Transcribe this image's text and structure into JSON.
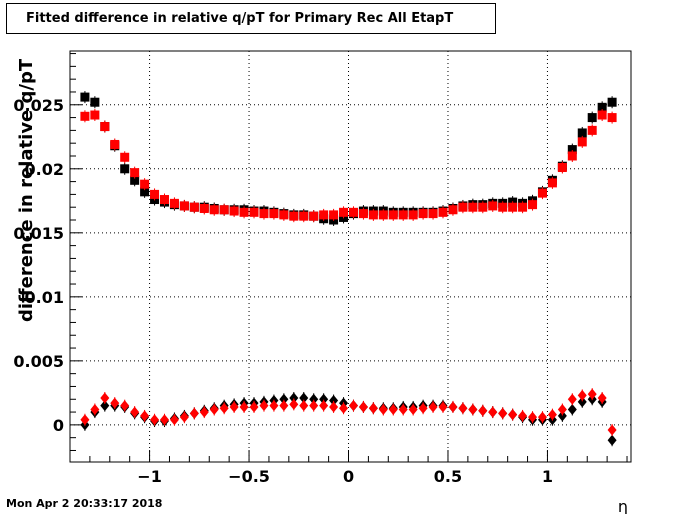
{
  "chart_data": {
    "type": "scatter",
    "title": "Fitted difference in relative q/pT for Primary Rec All EtapT",
    "xlabel": "η",
    "ylabel": "difference in relative q/pT",
    "xlim": [
      -1.4,
      1.42
    ],
    "ylim": [
      -0.0029,
      0.0292
    ],
    "grid": true,
    "x_ticks": [
      -1,
      -0.5,
      0,
      0.5,
      1
    ],
    "x_tick_labels": [
      "−1",
      "−0.5",
      "0",
      "0.5",
      "1"
    ],
    "y_ticks": [
      0,
      0.005,
      0.01,
      0.015,
      0.02,
      0.025
    ],
    "y_tick_labels": [
      "0",
      "0.005",
      "0.01",
      "0.015",
      "0.02",
      "0.025"
    ],
    "x": [
      -1.325,
      -1.275,
      -1.225,
      -1.175,
      -1.125,
      -1.075,
      -1.025,
      -0.975,
      -0.925,
      -0.875,
      -0.825,
      -0.775,
      -0.725,
      -0.675,
      -0.625,
      -0.575,
      -0.525,
      -0.475,
      -0.425,
      -0.375,
      -0.325,
      -0.275,
      -0.225,
      -0.175,
      -0.125,
      -0.075,
      -0.025,
      0.025,
      0.075,
      0.125,
      0.175,
      0.225,
      0.275,
      0.325,
      0.375,
      0.425,
      0.475,
      0.525,
      0.575,
      0.625,
      0.675,
      0.725,
      0.775,
      0.825,
      0.875,
      0.925,
      0.975,
      1.025,
      1.075,
      1.125,
      1.175,
      1.225,
      1.275,
      1.325
    ],
    "series": [
      {
        "marker": "square",
        "color": "#000000",
        "values": [
          0.0256,
          0.0252,
          0.0233,
          0.0218,
          0.02,
          0.0191,
          0.0182,
          0.0176,
          0.0174,
          0.0172,
          0.0171,
          0.017,
          0.017,
          0.0169,
          0.0168,
          0.0168,
          0.0168,
          0.0167,
          0.0167,
          0.0166,
          0.0165,
          0.0164,
          0.0164,
          0.0163,
          0.0161,
          0.016,
          0.0162,
          0.0165,
          0.0167,
          0.0167,
          0.0167,
          0.0166,
          0.0166,
          0.0166,
          0.0166,
          0.0166,
          0.0167,
          0.0169,
          0.0171,
          0.0172,
          0.0172,
          0.0173,
          0.0173,
          0.0174,
          0.0173,
          0.0175,
          0.0182,
          0.0191,
          0.0202,
          0.0215,
          0.0228,
          0.024,
          0.0248,
          0.0252
        ]
      },
      {
        "marker": "square",
        "color": "#ff0000",
        "values": [
          0.0241,
          0.0242,
          0.0233,
          0.0219,
          0.0209,
          0.0197,
          0.0188,
          0.018,
          0.0176,
          0.0173,
          0.0171,
          0.017,
          0.0169,
          0.0168,
          0.0168,
          0.0167,
          0.0166,
          0.0166,
          0.0165,
          0.0165,
          0.0164,
          0.0163,
          0.0163,
          0.0163,
          0.0164,
          0.0164,
          0.0166,
          0.0166,
          0.0165,
          0.0164,
          0.0164,
          0.0164,
          0.0164,
          0.0164,
          0.0165,
          0.0165,
          0.0166,
          0.0168,
          0.017,
          0.017,
          0.017,
          0.0171,
          0.017,
          0.017,
          0.017,
          0.0172,
          0.0181,
          0.0189,
          0.0201,
          0.021,
          0.0221,
          0.023,
          0.0242,
          0.024
        ]
      },
      {
        "marker": "diamond",
        "color": "#000000",
        "values": [
          0.0,
          0.001,
          0.0015,
          0.0015,
          0.0014,
          0.0009,
          0.0006,
          0.0003,
          0.0003,
          0.0005,
          0.0007,
          0.0009,
          0.0011,
          0.0013,
          0.0015,
          0.0016,
          0.0017,
          0.0017,
          0.0018,
          0.0019,
          0.002,
          0.0021,
          0.0021,
          0.002,
          0.002,
          0.0019,
          0.0017,
          0.0015,
          0.0014,
          0.0013,
          0.0013,
          0.0013,
          0.0014,
          0.0014,
          0.0015,
          0.0015,
          0.0015,
          0.0014,
          0.0013,
          0.0012,
          0.0011,
          0.001,
          0.0009,
          0.0008,
          0.0006,
          0.0004,
          0.0004,
          0.0004,
          0.0007,
          0.0012,
          0.0018,
          0.002,
          0.0018,
          -0.0012
        ]
      },
      {
        "marker": "diamond",
        "color": "#ff0000",
        "values": [
          0.0004,
          0.0012,
          0.0021,
          0.0017,
          0.0015,
          0.001,
          0.0007,
          0.0004,
          0.0004,
          0.0004,
          0.0006,
          0.0009,
          0.001,
          0.0012,
          0.0013,
          0.0014,
          0.0014,
          0.0014,
          0.0015,
          0.0015,
          0.0015,
          0.0016,
          0.0015,
          0.0015,
          0.0015,
          0.0014,
          0.0013,
          0.0015,
          0.0014,
          0.0013,
          0.0012,
          0.0012,
          0.0012,
          0.0012,
          0.0013,
          0.0014,
          0.0014,
          0.0014,
          0.0013,
          0.0012,
          0.0011,
          0.001,
          0.0009,
          0.0008,
          0.0007,
          0.0006,
          0.0006,
          0.0008,
          0.0012,
          0.002,
          0.0023,
          0.0024,
          0.0021,
          -0.0004
        ]
      }
    ]
  },
  "footer": {
    "date": "Mon Apr  2 20:33:17 2018"
  }
}
